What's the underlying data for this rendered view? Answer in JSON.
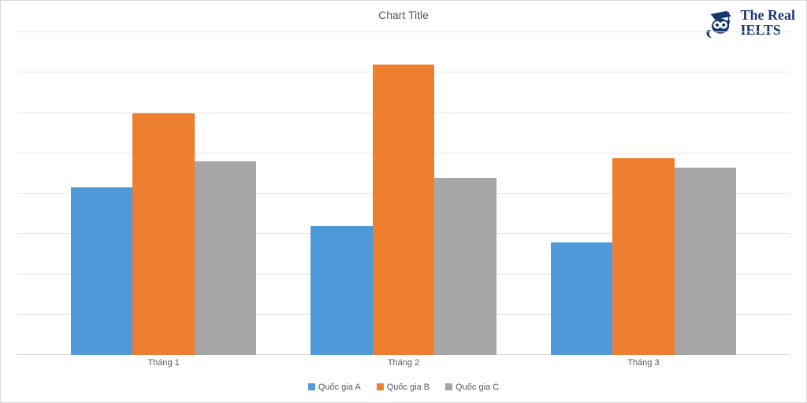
{
  "chart": {
    "type": "bar",
    "title": "Chart Title",
    "title_fontsize": 14,
    "title_color": "#595959",
    "background_color": "#ffffff",
    "grid_color": "#e6e6e6",
    "axis_line_color": "#d9d9d9",
    "label_color": "#595959",
    "label_fontsize": 11,
    "ylim": [
      0,
      100
    ],
    "gridlines_y": [
      0,
      12.5,
      25,
      37.5,
      50,
      62.5,
      75,
      87.5,
      100
    ],
    "bar_width_pct": 8.0,
    "group_gap_pct": 6.0,
    "categories": [
      "Tháng 1",
      "Tháng 2",
      "Tháng 3"
    ],
    "series": [
      {
        "name": "Quốc gia A",
        "color": "#4f9bd9",
        "values": [
          52,
          40,
          35
        ]
      },
      {
        "name": "Quốc gia B",
        "color": "#ef7f30",
        "values": [
          75,
          90,
          61
        ]
      },
      {
        "name": "Quốc gia C",
        "color": "#a6a6a6",
        "values": [
          60,
          55,
          58
        ]
      }
    ]
  },
  "logo": {
    "line1": "The Real",
    "line2": "IELTS",
    "color": "#16386f"
  }
}
